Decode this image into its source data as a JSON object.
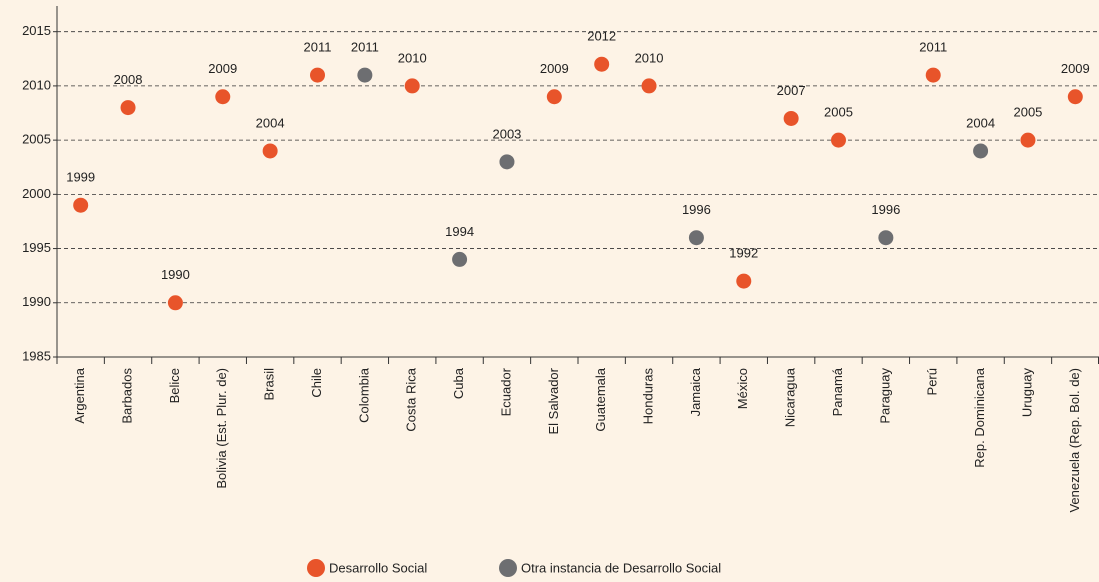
{
  "chart_data": {
    "type": "dot",
    "categories": [
      "Argentina",
      "Barbados",
      "Belice",
      "Bolivia (Est. Plur. de)",
      "Brasil",
      "Chile",
      "Colombia",
      "Costa Rica",
      "Cuba",
      "Ecuador",
      "El Salvador",
      "Guatemala",
      "Honduras",
      "Jamaica",
      "México",
      "Nicaragua",
      "Panamá",
      "Paraguay",
      "Perú",
      "Rep. Dominicana",
      "Uruguay",
      "Venezuela (Rep. Bol. de)"
    ],
    "series": [
      {
        "name": "Desarrollo Social",
        "color": "#e8542a",
        "values": [
          1999,
          2008,
          1990,
          2009,
          2004,
          2011,
          null,
          2010,
          null,
          null,
          2009,
          2012,
          2010,
          null,
          1992,
          2007,
          2005,
          null,
          2011,
          null,
          2005,
          2009
        ]
      },
      {
        "name": "Otra instancia de Desarrollo Social",
        "color": "#6d6e71",
        "values": [
          null,
          null,
          null,
          null,
          null,
          null,
          2011,
          null,
          1994,
          2003,
          null,
          null,
          null,
          1996,
          null,
          null,
          null,
          1996,
          null,
          2004,
          null,
          null
        ]
      }
    ],
    "ylim": [
      1985,
      2017
    ],
    "yticks": [
      1985,
      1990,
      1995,
      2000,
      2005,
      2010,
      2015
    ],
    "grid": true
  }
}
